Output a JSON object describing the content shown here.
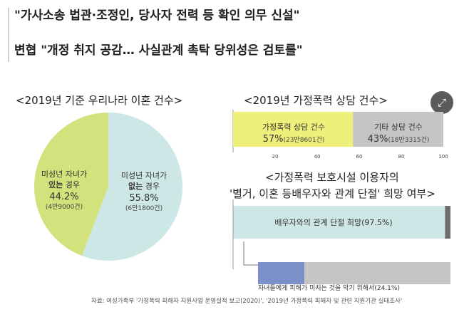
{
  "headline_1": "\"가사소송 법관·조정인, 당사자 전력 등 확인 의무 신설\"",
  "headline_2": "변협 \"개정 취지 공감… 사실관계 촉탁 당위성은 검토를\"",
  "expand_icon": "expand-icon",
  "source": "자료: 여성가족부 '가정폭력 피해자 지원사업 운영실적 보고(2020)', '2019년 가정폭력 피해자 및 관련 지원기관 실태조사'",
  "colors": {
    "green": "#d4e27d",
    "teal": "#cde6e6",
    "yellow": "#eef07a",
    "gray": "#c5c5c5",
    "blue": "#7b8fc9",
    "dark": "#6e6e6e"
  },
  "chart_data": [
    {
      "type": "pie",
      "title": "<2019년 기준 우리나라 이혼 건수>",
      "slices": [
        {
          "label_1": "미성년 자녀가",
          "label_2": "있는",
          "label_3": "경우",
          "percent_label": "44.2%",
          "count_label": "(4만9000건)",
          "value": 44.2
        },
        {
          "label_1": "미성년 자녀가",
          "label_2": "없는",
          "label_3": "경우",
          "percent_label": "55.8%",
          "count_label": "(6만1800건)",
          "value": 55.8
        }
      ]
    },
    {
      "type": "bar",
      "title": "<2019년 가정폭력 상담 건수>",
      "xlim": [
        0,
        100
      ],
      "ticks": [
        "20",
        "40",
        "60",
        "80",
        "100"
      ],
      "segments": [
        {
          "label": "가정폭력 상담 건수",
          "percent_label": "57%",
          "count_label": "(23만8601건)",
          "value": 57
        },
        {
          "label": "기타 상담 건수",
          "percent_label": "43%",
          "count_label": "(18만3315건)",
          "value": 43
        }
      ]
    },
    {
      "type": "bar",
      "title_1": "<가정폭력 보호시설 이용자의",
      "title_2": "'별거, 이혼 등배우자와 관계 단절' 희망 여부>",
      "bars": [
        {
          "label": "배우자와의 관계 단절 희망(97.5%)",
          "value": 97.5
        },
        {
          "label": "자녀들에게 피해가 미치는 것을 막기 위해서(24.1%)",
          "value": 24.1
        }
      ]
    }
  ]
}
